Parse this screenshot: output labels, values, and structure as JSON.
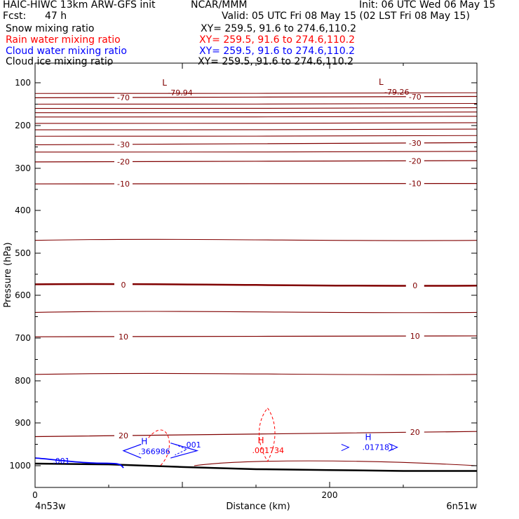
{
  "header": {
    "model_line": "HAIC-HIWC 13km ARW-GFS init",
    "org": "NCAR/MMM",
    "init": "Init: 06 UTC Wed 06 May 15",
    "fcst_label": "Fcst:",
    "fcst_value": "47 h",
    "valid": "Valid: 05 UTC Fri 08 May 15 (02 LST Fri 08 May 15)"
  },
  "fields": [
    {
      "name": "Snow mixing ratio",
      "xy": "XY= 259.5, 91.6 to 274.6,110.2",
      "color": "#000000"
    },
    {
      "name": "Rain water mixing ratio",
      "xy": "XY= 259.5, 91.6 to 274.6,110.2",
      "color": "#ff0000"
    },
    {
      "name": "Cloud water mixing ratio",
      "xy": "XY= 259.5, 91.6 to 274.6,110.2",
      "color": "#0000ff"
    },
    {
      "name": "Cloud ice mixing ratio",
      "xy": "XY= 259.5, 91.6 to 274.6,110.2",
      "color": "#000000"
    }
  ],
  "colors": {
    "temperature": "#800000",
    "rain": "#ff0000",
    "cloud_water": "#0000ff",
    "terrain": "#000000"
  },
  "chart_data": {
    "type": "line",
    "title": "",
    "xlabel": "Distance (km)",
    "ylabel": "Pressure (hPa)",
    "xlim": [
      0,
      300
    ],
    "ylim": [
      1050,
      75
    ],
    "y_ticks": [
      100,
      200,
      300,
      400,
      500,
      600,
      700,
      800,
      900,
      1000
    ],
    "x_ticks": [
      0,
      200
    ],
    "x_end_labels": {
      "left": "4n53w",
      "right": "6n51w"
    },
    "temperature_contours": [
      {
        "value": -70,
        "label": "-70",
        "pressure_left": 135,
        "pressure_right": 132
      },
      {
        "value": -30,
        "label": "-30",
        "pressure_left": 245,
        "pressure_right": 240
      },
      {
        "value": -20,
        "label": "-20",
        "pressure_left": 285,
        "pressure_right": 282
      },
      {
        "value": -10,
        "label": "-10",
        "pressure_left": 337,
        "pressure_right": 336
      },
      {
        "value": 0,
        "label": "0",
        "pressure_left": 574,
        "pressure_right": 577
      },
      {
        "value": 10,
        "label": "10",
        "pressure_left": 697,
        "pressure_right": 695
      },
      {
        "value": 20,
        "label": "20",
        "pressure_left": 932,
        "pressure_right": 920
      }
    ],
    "lows": [
      {
        "label": "L",
        "value": "-79.94",
        "x_km": 93,
        "pressure": 110
      },
      {
        "label": "L",
        "value": "-79.26",
        "x_km": 240,
        "pressure": 108
      }
    ],
    "rain_highs": [
      {
        "label": "H",
        "value": ".001734",
        "x_km": 155,
        "pressure": 980
      }
    ],
    "cloud_water_highs": [
      {
        "label": "H",
        "value": ".366986",
        "x_km": 73,
        "pressure": 970
      },
      {
        "label": "H",
        "value": ".017181",
        "x_km": 225,
        "pressure": 960
      }
    ],
    "cloud_water_contour_labels": [
      ".001",
      ".001"
    ],
    "terrain_pressure": [
      995,
      997,
      1003,
      1008,
      1010,
      1012,
      1012
    ]
  }
}
